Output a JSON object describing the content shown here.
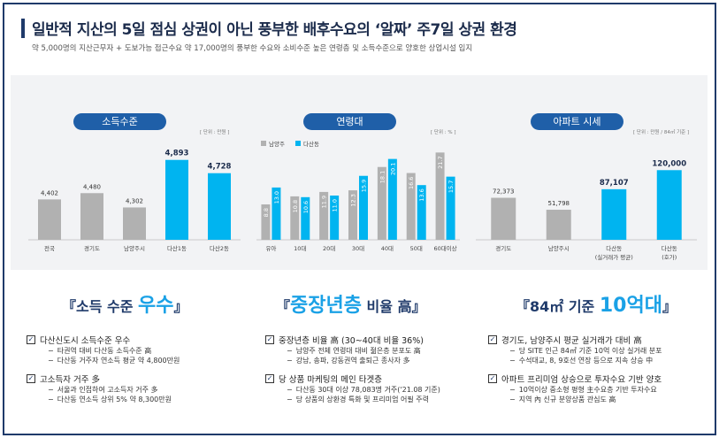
{
  "header": {
    "title": "일반적 지산의 5일 점심 상권이 아닌 풍부한 배후수요의 ‘알짜’ 주7일 상권 환경",
    "subtitle": "약 5,000명의 지산근무자 + 도보가능 접근수요 약 17,000명의 풍부한 수요와 소비수준 높은 연령층 및 소득수준으로 양호한 상업시설 입지"
  },
  "colors": {
    "navy": "#1f3a6a",
    "pill": "#1f5fa8",
    "accent": "#00b4f0",
    "gray": "#b1b1b1",
    "highlight": "#1aa1e6"
  },
  "panels": {
    "income": {
      "label": "소득수준",
      "unit": "[ 단위 : 만원 ]"
    },
    "age": {
      "label": "연령대",
      "unit": "[ 단위 : % ]",
      "legend": [
        "남양주",
        "다산동"
      ]
    },
    "apt": {
      "label": "아파트 시세",
      "unit": "[ 단위 : 만원 / 84㎡ 기준 ]"
    }
  },
  "chart_data": [
    {
      "type": "bar",
      "title": "소득수준",
      "categories": [
        "전국",
        "경기도",
        "남양주시",
        "다산1동",
        "다산2동"
      ],
      "values": [
        4402,
        4480,
        4302,
        4893,
        4728
      ],
      "value_labels": [
        "4,402",
        "4,480",
        "4,302",
        "4,893",
        "4,728"
      ],
      "highlight": [
        false,
        false,
        false,
        true,
        true
      ],
      "ylim": [
        3900,
        5000
      ]
    },
    {
      "type": "bar",
      "title": "연령대",
      "categories": [
        "유아",
        "10대",
        "20대",
        "30대",
        "40대",
        "50대",
        "60대이상"
      ],
      "series": [
        {
          "name": "남양주",
          "values": [
            8.8,
            10.8,
            11.9,
            12.3,
            18.1,
            16.6,
            21.7
          ]
        },
        {
          "name": "다산동",
          "values": [
            13.0,
            10.6,
            11.0,
            15.9,
            20.1,
            13.6,
            15.7
          ]
        }
      ],
      "ylim": [
        0,
        22
      ]
    },
    {
      "type": "bar",
      "title": "아파트 시세",
      "categories": [
        "경기도",
        "남양주시",
        "다산동\n(실거래가 평균)",
        "다산동\n(호가)"
      ],
      "values": [
        72373,
        51798,
        87107,
        120000
      ],
      "value_labels": [
        "72,373",
        "51,798",
        "87,107",
        "120,000"
      ],
      "highlight": [
        false,
        false,
        true,
        true
      ],
      "ylim": [
        0,
        125000
      ]
    }
  ],
  "headlines": [
    {
      "pre": "『소득 수준 ",
      "big": "우수",
      "post": "』",
      "hanja": ""
    },
    {
      "pre": "『",
      "big": "중장년층",
      "post": " 비율 高』",
      "hanja": ""
    },
    {
      "pre": "『84㎡ 기준 ",
      "big": "10억대",
      "post": "』",
      "hanja": ""
    }
  ],
  "bullets": [
    [
      {
        "head": "다산신도시 소득수준 우수",
        "subs": [
          "타권역 대비 다산동 소득수준 高",
          "다산동 거주자 연소득 평균 약 4,800만원"
        ]
      },
      {
        "head": "고소득자 거주 多",
        "subs": [
          "서울과 인접하여 고소득자 거주 多",
          "다산동 연소득 상위 5% 약 8,300만원"
        ]
      }
    ],
    [
      {
        "head": "중장년층 비율 高 (30~40대 비율 36%)",
        "subs": [
          "남양주 전체 연령대 대비 젊은층 분포도 高",
          "강남, 송파, 강동권역 출퇴근 종사자 多"
        ]
      },
      {
        "head": "당 상품 마케팅의 메인 타겟층",
        "subs": [
          "다산동 30대 이상 78,083명 거주('21.08 기준)",
          "당 상품의 상환경 특화 및 프리미엄 어필 주력"
        ]
      }
    ],
    [
      {
        "head": "경기도, 남양주시 평균 실거래가 대비 高",
        "subs": [
          "당 SITE 인근 84㎡ 기준 10억 이상 실거래 분포",
          "수석대교, 8, 9호선 연장 등으로 지속 상승 中"
        ]
      },
      {
        "head": "아파트 프리미엄 상승으로 투자수요 기반 양호",
        "subs": [
          "10억이상 중소형 평형 主수요층 기반 투자수요",
          "지역 內 신규 분양상품 관심도 高"
        ]
      }
    ]
  ]
}
